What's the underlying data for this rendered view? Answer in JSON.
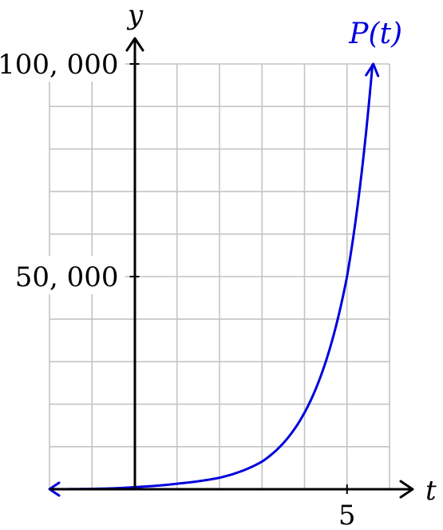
{
  "chart_data": {
    "type": "line",
    "xlabel": "t",
    "ylabel": "y",
    "xlim": [
      -2,
      6
    ],
    "ylim": [
      0,
      100000
    ],
    "x_ticks": [
      {
        "value": 5,
        "label": "5"
      }
    ],
    "y_ticks": [
      {
        "value": 50000,
        "label": "50, 000"
      },
      {
        "value": 100000,
        "label": "100, 000"
      }
    ],
    "grid": true,
    "grid_x_step": 1,
    "grid_y_step": 10000,
    "series": [
      {
        "name": "P(t)",
        "color": "#0000dd",
        "function": "exponential",
        "x": [
          -2,
          -1,
          0,
          1,
          2,
          3,
          4,
          5,
          5.6
        ],
        "values": [
          16,
          92,
          500,
          1300,
          2700,
          6500,
          18000,
          50000,
          100000
        ]
      }
    ]
  }
}
